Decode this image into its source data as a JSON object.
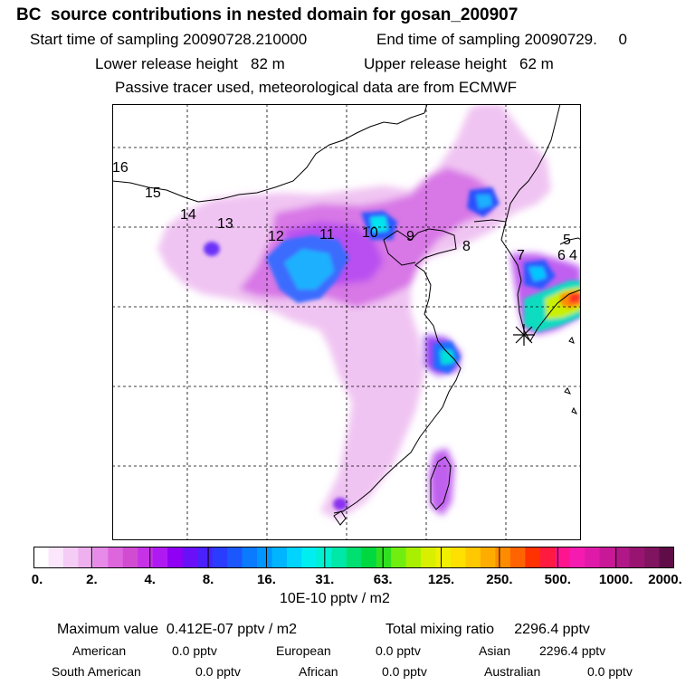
{
  "header": {
    "title": "BC  source contributions in nested domain for gosan_200907",
    "start_label": "Start time of sampling 20090728.210000",
    "end_label": "End time of sampling 20090729.     0",
    "lower_label": "Lower release height   82 m",
    "upper_label": "Upper release height   62 m",
    "note": "Passive tracer used, meteorological data are from ECMWF"
  },
  "map": {
    "trajectory_labels": [
      "16",
      "15",
      "14",
      "13",
      "12",
      "11",
      "10",
      "9",
      "8",
      "7",
      "6",
      "5",
      "4"
    ],
    "receptor_marker": "asterisk",
    "colors": {
      "frame": "#000000",
      "grid": "#000000",
      "coast": "#000000"
    }
  },
  "colorbar": {
    "ticks": [
      "0.",
      "2.",
      "4.",
      "8.",
      "16.",
      "31.",
      "63.",
      "125.",
      "250.",
      "500.",
      "1000.",
      "2000."
    ],
    "colors": [
      "#ffffff",
      "#fbe6fb",
      "#f5ccf5",
      "#eeb0ee",
      "#e88ae8",
      "#dd66dd",
      "#d24cd2",
      "#c633e6",
      "#b01af2",
      "#8f00f5",
      "#6a10f8",
      "#4a20fb",
      "#2a3cfd",
      "#1a58fd",
      "#0a7aff",
      "#0096ff",
      "#00b4ff",
      "#00d4ff",
      "#00eef0",
      "#00f0d0",
      "#00e8a8",
      "#00e070",
      "#00d840",
      "#30e020",
      "#70ee10",
      "#a8f000",
      "#d8f000",
      "#f0f000",
      "#ffe000",
      "#ffc800",
      "#ffac00",
      "#ff8c00",
      "#ff6400",
      "#ff3200",
      "#ff1a40",
      "#ff1490",
      "#f51ab0",
      "#e01aa8",
      "#c81898",
      "#b01888",
      "#981470",
      "#801460",
      "#600c48"
    ],
    "unit": "10E-10 pptv / m2"
  },
  "summary": {
    "max_label": "Maximum value  0.412E-07 pptv / m2",
    "total_label": "Total mixing ratio     2296.4 pptv",
    "american_label": "American",
    "american_value": "0.0 pptv",
    "european_label": "European",
    "european_value": "0.0 pptv",
    "asian_label": "Asian",
    "asian_value": "2296.4 pptv",
    "south_american_label": "South American",
    "south_american_value": "0.0 pptv",
    "african_label": "African",
    "african_value": "0.0 pptv",
    "australian_label": "Australian",
    "australian_value": "0.0 pptv"
  }
}
